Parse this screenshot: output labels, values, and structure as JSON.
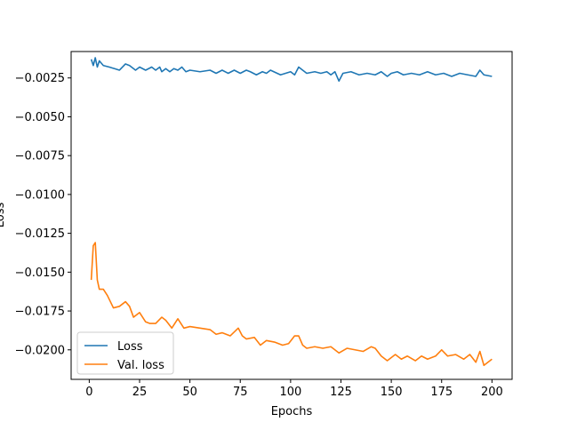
{
  "chart_data": {
    "type": "line",
    "title": "",
    "xlabel": "Epochs",
    "ylabel": "Loss",
    "xlim": [
      -9,
      210
    ],
    "ylim": [
      -0.0219,
      -0.0008
    ],
    "xticks": [
      0,
      25,
      50,
      75,
      100,
      125,
      150,
      175,
      200
    ],
    "yticks": [
      -0.0025,
      -0.005,
      -0.0075,
      -0.01,
      -0.0125,
      -0.015,
      -0.0175,
      -0.02
    ],
    "xtick_labels": [
      "0",
      "25",
      "50",
      "75",
      "100",
      "125",
      "150",
      "175",
      "200"
    ],
    "ytick_labels": [
      "−0.0025",
      "−0.0050",
      "−0.0075",
      "−0.0100",
      "−0.0125",
      "−0.0150",
      "−0.0175",
      "−0.0200"
    ],
    "grid": false,
    "legend": "lower-left",
    "series": [
      {
        "name": "Loss",
        "color": "#1f77b4",
        "x": [
          1,
          2,
          3,
          4,
          5,
          7,
          10,
          15,
          18,
          20,
          23,
          25,
          28,
          31,
          33,
          35,
          36,
          38,
          40,
          42,
          44,
          46,
          48,
          50,
          55,
          60,
          63,
          66,
          69,
          72,
          75,
          78,
          80,
          83,
          86,
          88,
          90,
          95,
          100,
          102,
          104,
          108,
          112,
          115,
          118,
          120,
          122,
          124,
          126,
          130,
          134,
          138,
          142,
          145,
          148,
          150,
          153,
          156,
          160,
          164,
          168,
          172,
          176,
          180,
          184,
          188,
          192,
          194,
          196,
          200
        ],
        "y": [
          -0.0013,
          -0.0017,
          -0.0012,
          -0.0018,
          -0.0014,
          -0.0017,
          -0.0018,
          -0.002,
          -0.0016,
          -0.0017,
          -0.002,
          -0.0018,
          -0.002,
          -0.0018,
          -0.002,
          -0.0018,
          -0.0021,
          -0.0019,
          -0.0021,
          -0.0019,
          -0.002,
          -0.0018,
          -0.0021,
          -0.002,
          -0.0021,
          -0.002,
          -0.0022,
          -0.002,
          -0.0022,
          -0.002,
          -0.0022,
          -0.002,
          -0.0021,
          -0.0023,
          -0.0021,
          -0.0022,
          -0.002,
          -0.0023,
          -0.0021,
          -0.0023,
          -0.0018,
          -0.0022,
          -0.0021,
          -0.0022,
          -0.0021,
          -0.0023,
          -0.0021,
          -0.0027,
          -0.0022,
          -0.0021,
          -0.0023,
          -0.0022,
          -0.0023,
          -0.0021,
          -0.0024,
          -0.0022,
          -0.0021,
          -0.0023,
          -0.0022,
          -0.0023,
          -0.0021,
          -0.0023,
          -0.0022,
          -0.0024,
          -0.0022,
          -0.0023,
          -0.0024,
          -0.002,
          -0.0023,
          -0.0024
        ]
      },
      {
        "name": "Val. loss",
        "color": "#ff7f0e",
        "x": [
          1,
          2,
          3,
          4,
          5,
          7,
          9,
          12,
          15,
          18,
          20,
          22,
          25,
          28,
          30,
          33,
          36,
          38,
          41,
          44,
          47,
          50,
          55,
          60,
          63,
          66,
          70,
          74,
          76,
          78,
          82,
          85,
          88,
          92,
          96,
          99,
          102,
          104,
          106,
          108,
          112,
          116,
          120,
          124,
          128,
          132,
          136,
          140,
          142,
          145,
          148,
          152,
          155,
          158,
          162,
          165,
          168,
          172,
          175,
          178,
          182,
          186,
          189,
          192,
          194,
          196,
          200
        ],
        "y": [
          -0.0155,
          -0.0133,
          -0.0131,
          -0.0155,
          -0.0161,
          -0.0161,
          -0.0165,
          -0.0173,
          -0.0172,
          -0.0169,
          -0.0172,
          -0.0179,
          -0.0176,
          -0.0182,
          -0.0183,
          -0.0183,
          -0.0179,
          -0.0181,
          -0.0186,
          -0.018,
          -0.0186,
          -0.0185,
          -0.0186,
          -0.0187,
          -0.019,
          -0.0189,
          -0.0191,
          -0.0186,
          -0.0191,
          -0.0193,
          -0.0192,
          -0.0197,
          -0.0194,
          -0.0195,
          -0.0197,
          -0.0196,
          -0.0191,
          -0.0191,
          -0.0197,
          -0.0199,
          -0.0198,
          -0.0199,
          -0.0198,
          -0.0202,
          -0.0199,
          -0.02,
          -0.0201,
          -0.0198,
          -0.0199,
          -0.0204,
          -0.0207,
          -0.0203,
          -0.0206,
          -0.0204,
          -0.0207,
          -0.0204,
          -0.0206,
          -0.0204,
          -0.02,
          -0.0204,
          -0.0203,
          -0.0206,
          -0.0203,
          -0.0208,
          -0.0201,
          -0.021,
          -0.0206
        ]
      }
    ]
  }
}
